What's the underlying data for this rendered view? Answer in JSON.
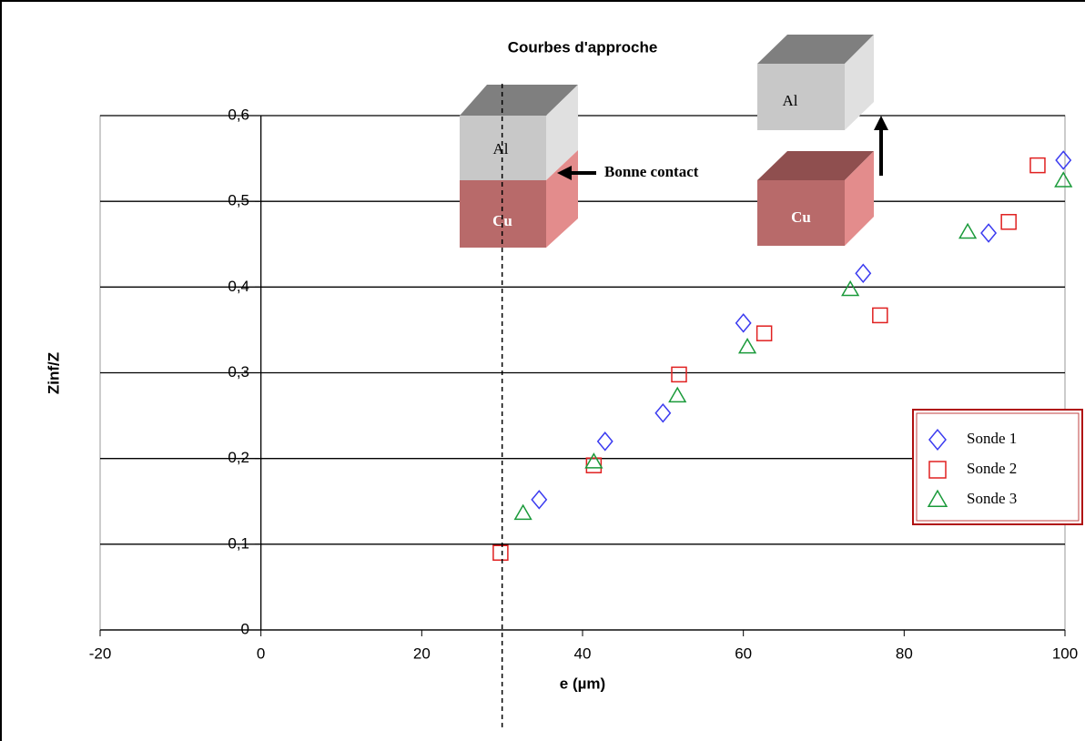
{
  "chart_data": {
    "type": "scatter",
    "title": "Courbes d'approche",
    "xlabel": "e (µm)",
    "ylabel": "Zinf/Z",
    "xlim": [
      -20,
      100
    ],
    "xticks": [
      -20,
      0,
      20,
      40,
      60,
      80,
      100
    ],
    "ylim": [
      0,
      0.6
    ],
    "yticks": [
      0,
      {
        "value": 0.1,
        "label": "0,1"
      },
      {
        "value": 0.2,
        "label": "0,2"
      },
      {
        "value": 0.3,
        "label": "0,3"
      },
      {
        "value": 0.4,
        "label": "0,4"
      },
      {
        "value": 0.5,
        "label": "0,5"
      },
      {
        "value": 0.6,
        "label": "0,6"
      }
    ],
    "grid": true,
    "vline": 30,
    "series": [
      {
        "name": "Sonde 1",
        "marker": "diamond",
        "color": "#3b3bf0",
        "x": [
          34.6,
          42.8,
          50.0,
          60.0,
          74.9,
          90.5,
          99.8
        ],
        "values": [
          0.152,
          0.22,
          0.253,
          0.358,
          0.416,
          0.463,
          0.548
        ]
      },
      {
        "name": "Sonde 2",
        "marker": "square",
        "color": "#e02020",
        "x": [
          29.8,
          41.4,
          52.0,
          62.6,
          77.0,
          93.0,
          96.6
        ],
        "values": [
          0.09,
          0.192,
          0.298,
          0.346,
          0.367,
          0.476,
          0.542
        ]
      },
      {
        "name": "Sonde 3",
        "marker": "triangle",
        "color": "#1a9a3a",
        "x": [
          32.6,
          41.4,
          51.8,
          60.5,
          73.3,
          87.9,
          99.8
        ],
        "values": [
          0.136,
          0.196,
          0.273,
          0.33,
          0.397,
          0.464,
          0.524
        ]
      }
    ],
    "annotations": [
      "Al",
      "Cu",
      "Bonne contact",
      "Al",
      "Cu"
    ]
  }
}
